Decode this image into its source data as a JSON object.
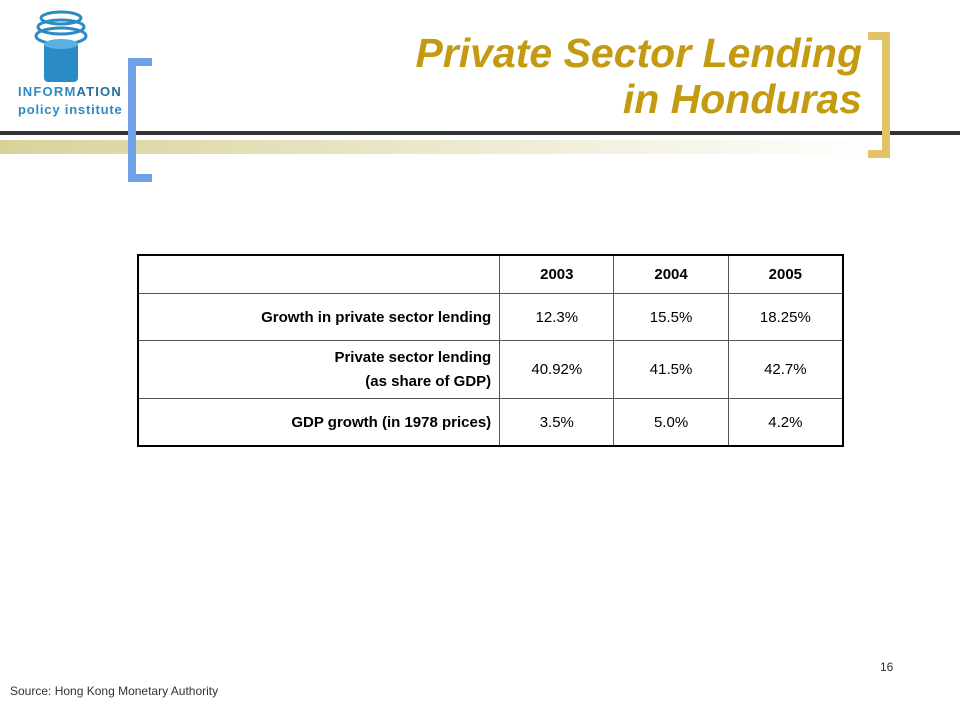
{
  "logo": {
    "line1_part1": "INFORM",
    "line1_part2": "ATION",
    "line2": "policy institute"
  },
  "title": {
    "line1": "Private Sector Lending",
    "line2": "in Honduras"
  },
  "table": {
    "header": [
      "",
      "2003",
      "2004",
      "2005"
    ],
    "rows": [
      {
        "label_line1": "Growth in private sector lending",
        "label_line2": "",
        "values": [
          "12.3%",
          "15.5%",
          "18.25%"
        ]
      },
      {
        "label_line1": "Private sector lending",
        "label_line2": "(as share of GDP)",
        "values": [
          "40.92%",
          "41.5%",
          "42.7%"
        ]
      },
      {
        "label_line1": "GDP growth  (in 1978 prices)",
        "label_line2": "",
        "values": [
          "3.5%",
          "5.0%",
          "4.2%"
        ]
      }
    ]
  },
  "page_number": "16",
  "source": "Source: Hong Kong Monetary Authority",
  "colors": {
    "title": "#c39a10",
    "left_bracket": "#6fa0e8",
    "right_bracket": "#e2c36a",
    "logo_blue": "#2b8bc6"
  }
}
